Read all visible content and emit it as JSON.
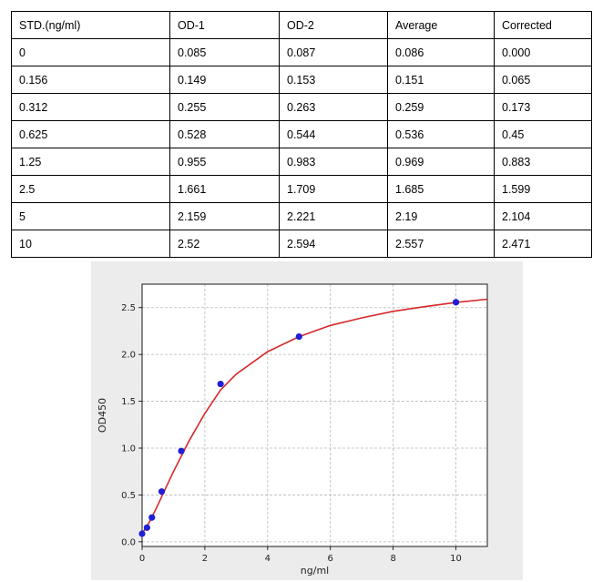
{
  "table": {
    "headers": [
      "STD.(ng/ml)",
      "OD-1",
      "OD-2",
      "Average",
      "Corrected"
    ],
    "rows": [
      [
        "0",
        "0.085",
        "0.087",
        "0.086",
        "0.000"
      ],
      [
        "0.156",
        "0.149",
        "0.153",
        "0.151",
        "0.065"
      ],
      [
        "0.312",
        "0.255",
        "0.263",
        "0.259",
        "0.173"
      ],
      [
        "0.625",
        "0.528",
        "0.544",
        "0.536",
        "0.45"
      ],
      [
        "1.25",
        "0.955",
        "0.983",
        "0.969",
        "0.883"
      ],
      [
        "2.5",
        "1.661",
        "1.709",
        "1.685",
        "1.599"
      ],
      [
        "5",
        "2.159",
        "2.221",
        "2.19",
        "2.104"
      ],
      [
        "10",
        "2.52",
        "2.594",
        "2.557",
        "2.471"
      ]
    ]
  },
  "chart_data": {
    "type": "scatter",
    "title": "",
    "xlabel": "ng/ml",
    "ylabel": "OD450",
    "xlim": [
      0,
      11
    ],
    "ylim": [
      -0.05,
      2.75
    ],
    "xticks": [
      "0",
      "2",
      "4",
      "6",
      "8",
      "10"
    ],
    "yticks": [
      "0.0",
      "0.5",
      "1.0",
      "1.5",
      "2.0",
      "2.5"
    ],
    "grid": true,
    "points": {
      "x": [
        0,
        0.156,
        0.312,
        0.625,
        1.25,
        2.5,
        5,
        10
      ],
      "y": [
        0.086,
        0.151,
        0.259,
        0.536,
        0.969,
        1.685,
        2.19,
        2.557
      ],
      "color": "#1f1fd6"
    },
    "fit_curve": {
      "color": "#d62728",
      "x": [
        0,
        0.25,
        0.5,
        0.75,
        1,
        1.5,
        2,
        2.5,
        3,
        4,
        5,
        6,
        7,
        8,
        9,
        10,
        11
      ],
      "y": [
        0.087,
        0.22,
        0.39,
        0.57,
        0.75,
        1.08,
        1.37,
        1.62,
        1.79,
        2.03,
        2.19,
        2.31,
        2.39,
        2.46,
        2.51,
        2.555,
        2.59
      ]
    }
  }
}
